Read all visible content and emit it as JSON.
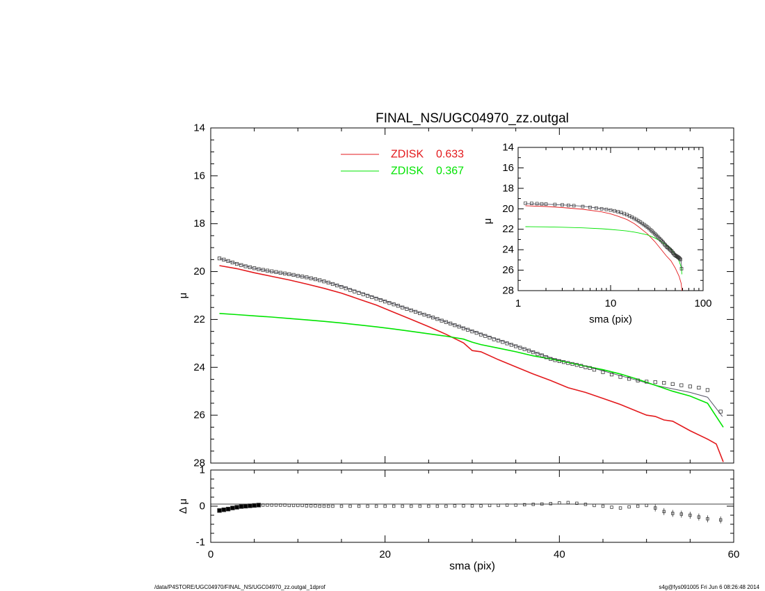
{
  "chart_data": [
    {
      "type": "line",
      "title": "FINAL_NS/UGC04970_zz.outgal",
      "xlabel": "",
      "ylabel": "μ",
      "xlim": [
        0,
        60
      ],
      "ylim": [
        28,
        14
      ],
      "y_inverted": true,
      "yticks": [
        "14",
        "16",
        "18",
        "20",
        "22",
        "24",
        "26",
        "28"
      ],
      "legend": {
        "placement": "top-center",
        "entries": [
          {
            "name": "ZDISK",
            "value": "0.633",
            "color": "#e3191c"
          },
          {
            "name": "ZDISK",
            "value": "0.367",
            "color": "#00e400"
          }
        ]
      },
      "data_points": {
        "marker": "square",
        "x": [
          1.0,
          1.5,
          2.0,
          2.5,
          3.0,
          3.5,
          4.0,
          4.5,
          5.0,
          5.5,
          6.0,
          6.5,
          7.0,
          7.5,
          8.0,
          8.5,
          9.0,
          9.5,
          10.0,
          10.5,
          11.0,
          11.5,
          12.0,
          12.5,
          13.0,
          13.5,
          14.0,
          14.5,
          15.0,
          15.5,
          16.0,
          16.5,
          17.0,
          17.5,
          18.0,
          18.5,
          19.0,
          19.5,
          20.0,
          20.5,
          21.0,
          21.5,
          22.0,
          22.5,
          23.0,
          23.5,
          24.0,
          24.5,
          25.0,
          25.5,
          26.0,
          26.5,
          27.0,
          27.5,
          28.0,
          28.5,
          29.0,
          29.5,
          30.0,
          30.5,
          31.0,
          31.5,
          32.0,
          32.5,
          33.0,
          33.5,
          34.0,
          34.5,
          35.0,
          35.5,
          36.0,
          36.5,
          37.0,
          37.5,
          38.0,
          38.5,
          39.0,
          39.5,
          40.0,
          40.5,
          41.0,
          41.5,
          42.0,
          42.5,
          43.0,
          43.5,
          44.0,
          45.0,
          46.0,
          47.0,
          48.0,
          49.0,
          50.0,
          51.0,
          52.0,
          53.0,
          54.0,
          55.0,
          56.0,
          57.0,
          58.5
        ],
        "y": [
          19.45,
          19.5,
          19.56,
          19.62,
          19.68,
          19.73,
          19.78,
          19.82,
          19.86,
          19.9,
          19.93,
          19.96,
          19.99,
          20.02,
          20.05,
          20.08,
          20.11,
          20.14,
          20.18,
          20.21,
          20.24,
          20.28,
          20.32,
          20.36,
          20.41,
          20.46,
          20.52,
          20.58,
          20.64,
          20.7,
          20.77,
          20.83,
          20.89,
          20.95,
          21.01,
          21.07,
          21.13,
          21.19,
          21.25,
          21.31,
          21.37,
          21.43,
          21.5,
          21.56,
          21.62,
          21.68,
          21.74,
          21.8,
          21.86,
          21.92,
          21.98,
          22.05,
          22.11,
          22.17,
          22.24,
          22.3,
          22.37,
          22.43,
          22.5,
          22.56,
          22.63,
          22.69,
          22.76,
          22.83,
          22.88,
          22.94,
          23.0,
          23.06,
          23.12,
          23.18,
          23.24,
          23.3,
          23.37,
          23.44,
          23.5,
          23.58,
          23.65,
          23.7,
          23.74,
          23.78,
          23.82,
          23.86,
          23.9,
          23.94,
          24.0,
          24.03,
          24.1,
          24.2,
          24.3,
          24.4,
          24.48,
          24.55,
          24.6,
          24.62,
          24.65,
          24.7,
          24.75,
          24.8,
          24.85,
          24.95,
          25.85
        ]
      },
      "series": [
        {
          "color": "#555566",
          "x": [
            1,
            3,
            5,
            7,
            9,
            11,
            13,
            15,
            17,
            19,
            21,
            23,
            25,
            27,
            29,
            31,
            33,
            35,
            37,
            39,
            41,
            43,
            45,
            47,
            49,
            51,
            53,
            55,
            57,
            58.7
          ],
          "y": [
            19.45,
            19.67,
            19.86,
            20.0,
            20.11,
            20.24,
            20.4,
            20.62,
            20.85,
            21.1,
            21.35,
            21.6,
            21.85,
            22.1,
            22.35,
            22.6,
            22.85,
            23.1,
            23.35,
            23.6,
            23.8,
            23.95,
            24.15,
            24.35,
            24.55,
            24.75,
            24.9,
            25.05,
            25.25,
            26.05
          ]
        },
        {
          "color": "#e3191c",
          "x": [
            1,
            3,
            5,
            7,
            9,
            11,
            13,
            15,
            17,
            19,
            21,
            23,
            25,
            27,
            29,
            30,
            31,
            33,
            35,
            37,
            39,
            41,
            43,
            45,
            47,
            49,
            50,
            51,
            52,
            53,
            55,
            57,
            58,
            58.8
          ],
          "y": [
            19.75,
            19.88,
            20.05,
            20.2,
            20.35,
            20.52,
            20.7,
            20.9,
            21.15,
            21.4,
            21.7,
            22.0,
            22.3,
            22.62,
            22.98,
            23.3,
            23.35,
            23.68,
            23.98,
            24.28,
            24.55,
            24.85,
            25.05,
            25.3,
            25.55,
            25.85,
            26.0,
            26.05,
            26.2,
            26.25,
            26.65,
            27.0,
            27.2,
            27.95
          ]
        },
        {
          "color": "#00e400",
          "x": [
            1,
            3,
            5,
            7,
            9,
            11,
            13,
            15,
            17,
            19,
            21,
            23,
            25,
            27,
            29,
            30,
            31,
            33,
            35,
            37,
            39,
            41,
            43,
            45,
            47,
            49,
            51,
            53,
            55,
            57,
            58.8
          ],
          "y": [
            21.75,
            21.8,
            21.85,
            21.9,
            21.96,
            22.02,
            22.08,
            22.15,
            22.23,
            22.31,
            22.4,
            22.5,
            22.6,
            22.7,
            22.82,
            22.95,
            23.05,
            23.2,
            23.35,
            23.52,
            23.65,
            23.8,
            23.95,
            24.1,
            24.28,
            24.5,
            24.75,
            25.0,
            25.2,
            25.5,
            26.5
          ]
        }
      ]
    },
    {
      "type": "scatter",
      "xlabel": "sma (pix)",
      "ylabel": "Δ μ",
      "xlim": [
        0,
        60
      ],
      "ylim": [
        -1.0,
        1.0
      ],
      "xticks": [
        "0",
        "20",
        "40",
        "60"
      ],
      "yticks": [
        "1",
        "0",
        "-1"
      ],
      "reference_line": 0,
      "x": [
        1.0,
        1.5,
        2.0,
        2.5,
        3.0,
        3.5,
        4.0,
        4.5,
        5.0,
        5.5,
        6.0,
        6.5,
        7.0,
        7.5,
        8.0,
        8.5,
        9.0,
        9.5,
        10.0,
        10.5,
        11.0,
        11.5,
        12.0,
        12.5,
        13.0,
        13.5,
        14.0,
        15.0,
        16.0,
        17.0,
        18.0,
        19.0,
        20.0,
        21.0,
        22.0,
        23.0,
        24.0,
        25.0,
        26.0,
        27.0,
        28.0,
        29.0,
        30.0,
        31.0,
        32.0,
        33.0,
        34.0,
        35.0,
        36.0,
        37.0,
        38.0,
        39.0,
        40.0,
        41.0,
        42.0,
        43.0,
        44.0,
        45.0,
        46.0,
        47.0,
        48.0,
        49.0,
        50.0,
        51.0,
        52.0,
        53.0,
        54.0,
        55.0,
        56.0,
        57.0,
        58.5
      ],
      "y": [
        -0.12,
        -0.1,
        -0.08,
        -0.05,
        -0.03,
        -0.01,
        0.0,
        0.01,
        0.02,
        0.03,
        0.03,
        0.03,
        0.03,
        0.03,
        0.03,
        0.03,
        0.02,
        0.02,
        0.02,
        0.02,
        0.01,
        0.01,
        0.01,
        0.0,
        0.0,
        0.0,
        0.0,
        0.0,
        0.0,
        0.0,
        0.0,
        0.0,
        0.0,
        0.0,
        0.0,
        0.0,
        0.0,
        0.0,
        0.0,
        0.0,
        0.01,
        0.01,
        0.01,
        0.01,
        0.02,
        0.02,
        0.03,
        0.03,
        0.04,
        0.05,
        0.06,
        0.07,
        0.09,
        0.1,
        0.08,
        0.05,
        0.02,
        0.0,
        -0.03,
        -0.05,
        -0.02,
        0.0,
        0.02,
        -0.05,
        -0.15,
        -0.2,
        -0.22,
        -0.25,
        -0.3,
        -0.35,
        -0.38
      ]
    },
    {
      "type": "line",
      "xlabel": "sma (pix)",
      "ylabel": "μ",
      "x_scale": "log",
      "xlim": [
        1,
        100
      ],
      "ylim": [
        28,
        14
      ],
      "y_inverted": true,
      "xticks": [
        "1",
        "10",
        "100"
      ],
      "yticks": [
        "14",
        "16",
        "18",
        "20",
        "22",
        "24",
        "26",
        "28"
      ],
      "series": [
        {
          "color": "#555566",
          "x": [
            1.2,
            2,
            3,
            5,
            8,
            10,
            12,
            15,
            18,
            20,
            25,
            30,
            35,
            40,
            45,
            50,
            55,
            58,
            59
          ],
          "y": [
            19.5,
            19.55,
            19.62,
            19.75,
            19.98,
            20.1,
            20.3,
            20.6,
            20.95,
            21.25,
            21.85,
            22.45,
            22.95,
            23.45,
            23.9,
            24.5,
            24.8,
            25.2,
            26.0
          ]
        },
        {
          "color": "#e3191c",
          "x": [
            1.2,
            2,
            3,
            5,
            8,
            10,
            12,
            15,
            18,
            20,
            25,
            30,
            35,
            40,
            45,
            50,
            55,
            58,
            59
          ],
          "y": [
            19.7,
            19.78,
            19.88,
            20.05,
            20.3,
            20.5,
            20.72,
            21.05,
            21.45,
            21.75,
            22.45,
            23.2,
            23.95,
            24.6,
            25.1,
            25.8,
            26.6,
            27.3,
            28.0
          ]
        },
        {
          "color": "#00e400",
          "x": [
            1.2,
            2,
            3,
            5,
            8,
            10,
            12,
            15,
            18,
            20,
            25,
            30,
            35,
            40,
            45,
            50,
            55,
            58,
            59
          ],
          "y": [
            21.75,
            21.77,
            21.8,
            21.86,
            21.95,
            22.02,
            22.08,
            22.17,
            22.28,
            22.35,
            22.55,
            22.85,
            23.18,
            23.55,
            23.95,
            24.5,
            25.1,
            25.7,
            26.4
          ]
        }
      ],
      "data_points": {
        "marker": "square",
        "x": [
          1.2,
          1.4,
          1.6,
          1.8,
          2.0,
          2.5,
          3.0,
          3.5,
          4.0,
          5.0,
          6.0,
          7.0,
          8.0,
          9.0,
          10.0,
          11.0,
          12.0,
          13.0,
          14.0,
          15.0,
          16.0,
          17.0,
          18.0,
          19.0,
          20.0,
          21.0,
          22.0,
          23.0,
          24.0,
          25.0,
          26.0,
          27.0,
          28.0,
          29.0,
          30.0,
          31.0,
          32.0,
          33.0,
          34.0,
          35.0,
          36.0,
          37.0,
          38.0,
          39.0,
          40.0,
          41.0,
          42.0,
          43.0,
          44.0,
          45.0,
          46.0,
          47.0,
          48.0,
          49.0,
          50.0,
          51.0,
          52.0,
          53.0,
          54.0,
          55.0,
          56.0,
          57.0,
          58.5
        ],
        "y": [
          19.45,
          19.47,
          19.5,
          19.52,
          19.54,
          19.58,
          19.62,
          19.66,
          19.7,
          19.78,
          19.86,
          19.93,
          20.0,
          20.06,
          20.13,
          20.2,
          20.28,
          20.37,
          20.47,
          20.58,
          20.7,
          20.82,
          20.94,
          21.06,
          21.18,
          21.3,
          21.43,
          21.55,
          21.67,
          21.79,
          21.92,
          22.05,
          22.18,
          22.31,
          22.44,
          22.57,
          22.7,
          22.82,
          22.94,
          23.06,
          23.18,
          23.3,
          23.44,
          23.56,
          23.68,
          23.76,
          23.84,
          23.92,
          24.0,
          24.08,
          24.18,
          24.28,
          24.38,
          24.48,
          24.55,
          24.6,
          24.65,
          24.7,
          24.75,
          24.8,
          24.88,
          24.95,
          25.85
        ]
      }
    }
  ],
  "footer": {
    "path": "/data/P4STORE/UGC04970/FINAL_NS/UGC04970_zz.outgal_1dprof",
    "stamp": "s4g@fys091005  Fri Jun  6 08:26:48 2014"
  }
}
